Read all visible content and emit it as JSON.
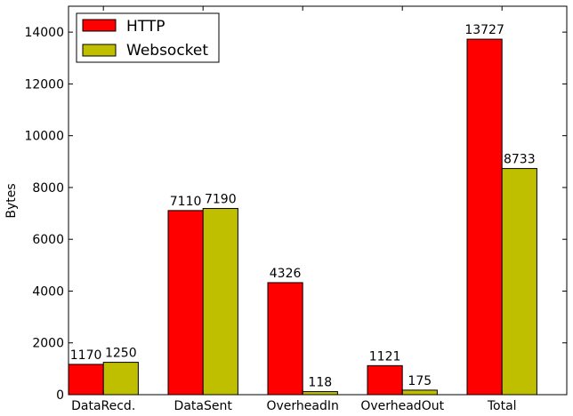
{
  "chart_data": {
    "type": "bar",
    "title": "",
    "xlabel": "",
    "ylabel": "Bytes",
    "ylim": [
      0,
      15000
    ],
    "yticks": [
      0,
      2000,
      4000,
      6000,
      8000,
      10000,
      12000,
      14000
    ],
    "ytick_labels": [
      "0",
      "2000",
      "4000",
      "6000",
      "8000",
      "10000",
      "12000",
      "14000"
    ],
    "categories": [
      "DataRecd.",
      "DataSent",
      "OverheadIn",
      "OverheadOut",
      "Total"
    ],
    "series": [
      {
        "name": "HTTP",
        "color": "#ff0000",
        "values": [
          1170,
          7110,
          4326,
          1121,
          13727
        ],
        "labels": [
          "1170",
          "7110",
          "4326",
          "1121",
          "13727"
        ]
      },
      {
        "name": "Websocket",
        "color": "#bfbf00",
        "values": [
          1250,
          7190,
          118,
          175,
          8733
        ],
        "labels": [
          "1250",
          "7190",
          "118",
          "175",
          "8733"
        ]
      }
    ],
    "legend": {
      "position": "top-left"
    },
    "grid": false
  }
}
